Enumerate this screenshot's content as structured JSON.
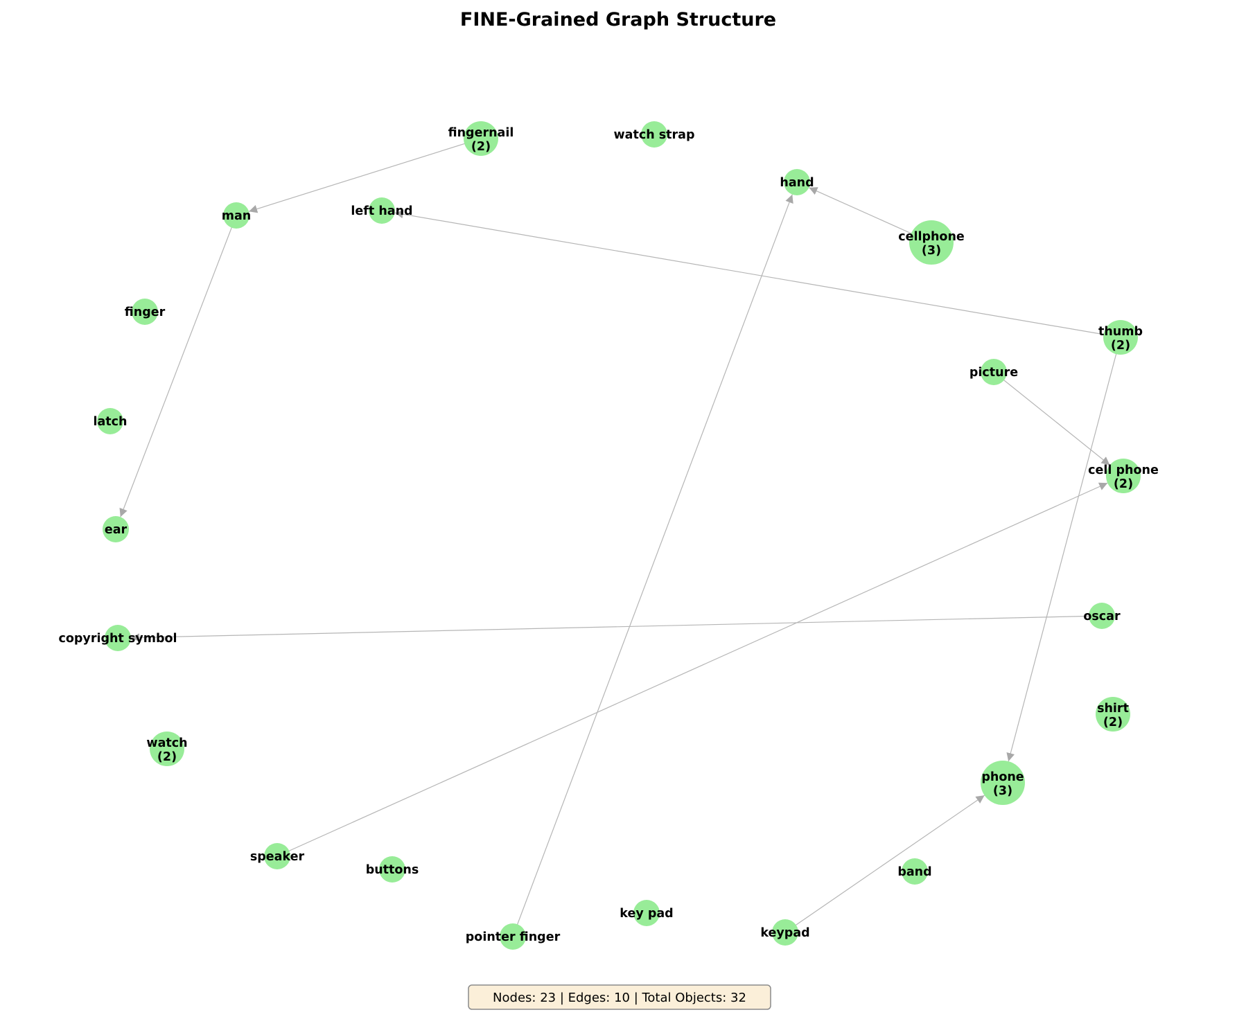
{
  "title": "FINE-Grained Graph Structure",
  "stats_text": "Nodes: 23 | Edges: 10 | Total Objects: 32",
  "colors": {
    "node_fill": "#98ec98",
    "edge": "#b5b5b5",
    "stats_background": "#fbefd9"
  },
  "nodes": [
    {
      "id": "fingernail",
      "label": "fingernail",
      "count": 2
    },
    {
      "id": "watch_strap",
      "label": "watch strap",
      "count": 1
    },
    {
      "id": "hand",
      "label": "hand",
      "count": 1
    },
    {
      "id": "man",
      "label": "man",
      "count": 1
    },
    {
      "id": "left_hand",
      "label": "left hand",
      "count": 1
    },
    {
      "id": "cellphone",
      "label": "cellphone",
      "count": 3
    },
    {
      "id": "finger",
      "label": "finger",
      "count": 1
    },
    {
      "id": "thumb",
      "label": "thumb",
      "count": 2
    },
    {
      "id": "picture",
      "label": "picture",
      "count": 1
    },
    {
      "id": "latch",
      "label": "latch",
      "count": 1
    },
    {
      "id": "cell_phone",
      "label": "cell phone",
      "count": 2
    },
    {
      "id": "ear",
      "label": "ear",
      "count": 1
    },
    {
      "id": "oscar",
      "label": "oscar",
      "count": 1
    },
    {
      "id": "copyright_symbol",
      "label": "copyright symbol",
      "count": 1
    },
    {
      "id": "shirt",
      "label": "shirt",
      "count": 2
    },
    {
      "id": "watch",
      "label": "watch",
      "count": 2
    },
    {
      "id": "phone",
      "label": "phone",
      "count": 3
    },
    {
      "id": "speaker",
      "label": "speaker",
      "count": 1
    },
    {
      "id": "buttons",
      "label": "buttons",
      "count": 1
    },
    {
      "id": "band",
      "label": "band",
      "count": 1
    },
    {
      "id": "key_pad",
      "label": "key pad",
      "count": 1
    },
    {
      "id": "keypad",
      "label": "keypad",
      "count": 1
    },
    {
      "id": "pointer_finger",
      "label": "pointer finger",
      "count": 1
    }
  ],
  "edges": [
    {
      "source": "fingernail",
      "target": "man"
    },
    {
      "source": "man",
      "target": "ear"
    },
    {
      "source": "cellphone",
      "target": "hand"
    },
    {
      "source": "thumb",
      "target": "left_hand"
    },
    {
      "source": "thumb",
      "target": "phone"
    },
    {
      "source": "picture",
      "target": "cell_phone"
    },
    {
      "source": "speaker",
      "target": "cell_phone"
    },
    {
      "source": "oscar",
      "target": "copyright_symbol"
    },
    {
      "source": "pointer_finger",
      "target": "hand"
    },
    {
      "source": "keypad",
      "target": "phone"
    }
  ]
}
